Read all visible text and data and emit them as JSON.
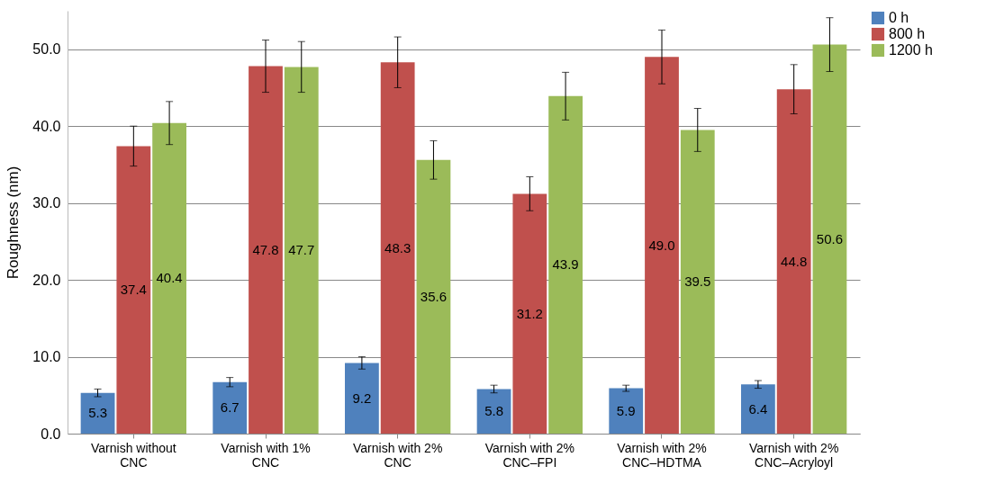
{
  "chart_data": {
    "type": "bar",
    "ylabel": "Roughness (nm)",
    "categories": [
      "Varnish without CNC",
      "Varnish with 1% CNC",
      "Varnish with 2% CNC",
      "Varnish with 2% CNC–FPI",
      "Varnish with 2% CNC–HDTMA",
      "Varnish with 2% CNC–Acryloyl"
    ],
    "series": [
      {
        "name": "0 h",
        "color": "#4f81bd",
        "values": [
          5.3,
          6.7,
          9.2,
          5.8,
          5.9,
          6.4
        ],
        "errors": [
          0.5,
          0.6,
          0.8,
          0.5,
          0.4,
          0.5
        ],
        "value_labels": [
          "5.3",
          "6.7",
          "9.2",
          "5.8",
          "5.9",
          "6.4"
        ]
      },
      {
        "name": "800 h",
        "color": "#c0504d",
        "values": [
          37.4,
          47.8,
          48.3,
          31.2,
          49.0,
          44.8
        ],
        "errors": [
          2.6,
          3.4,
          3.3,
          2.2,
          3.5,
          3.2
        ],
        "value_labels": [
          "37.4",
          "47.8",
          "48.3",
          "31.2",
          "49.0",
          "44.8"
        ]
      },
      {
        "name": "1200 h",
        "color": "#9bbb59",
        "values": [
          40.4,
          47.7,
          35.6,
          43.9,
          39.5,
          50.6
        ],
        "errors": [
          2.8,
          3.3,
          2.5,
          3.1,
          2.8,
          3.5
        ],
        "value_labels": [
          "40.4",
          "47.7",
          "35.6",
          "43.9",
          "39.5",
          "50.6"
        ]
      }
    ],
    "ylim": [
      0,
      55
    ],
    "yticks": [
      {
        "value": 0,
        "label": "0.0"
      },
      {
        "value": 10,
        "label": "10.0"
      },
      {
        "value": 20,
        "label": "20.0"
      },
      {
        "value": 30,
        "label": "30.0"
      },
      {
        "value": 40,
        "label": "40.0"
      },
      {
        "value": 50,
        "label": "50.0"
      }
    ],
    "grid": "y",
    "legend": "right"
  }
}
